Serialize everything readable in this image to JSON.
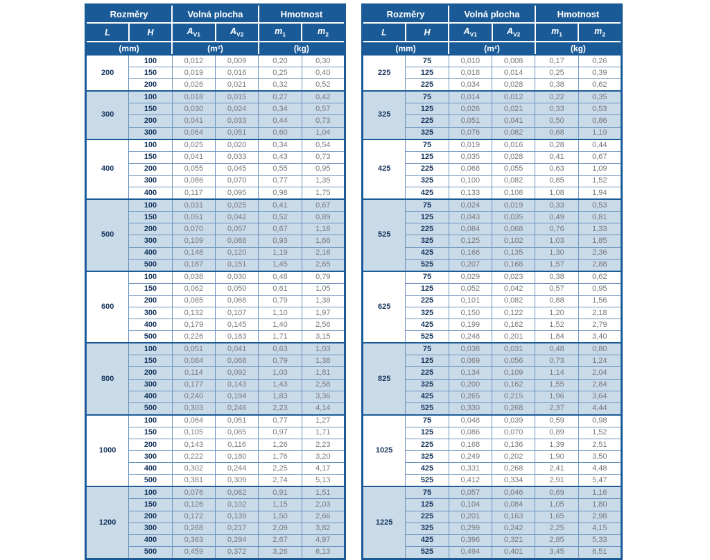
{
  "colors": {
    "header_bg": "#1a5a96",
    "band_light": "#c9dae9",
    "grid_border": "#6a92bd",
    "strong_border": "#1a5a96",
    "dimension_text": "#17365d",
    "value_text": "#77787b"
  },
  "header": {
    "groups": [
      "Rozměry",
      "Volná plocha",
      "Hmotnost"
    ],
    "columns": [
      {
        "text": "L",
        "sub": ""
      },
      {
        "text": "H",
        "sub": ""
      },
      {
        "text": "A",
        "sub": "V1"
      },
      {
        "text": "A",
        "sub": "V2"
      },
      {
        "text": "m",
        "sub": "1"
      },
      {
        "text": "m",
        "sub": "2"
      }
    ],
    "units": [
      "(mm)",
      "(m²)",
      "(kg)"
    ]
  },
  "tables": [
    {
      "name": "dimension-table-left",
      "groups": [
        {
          "l": "200",
          "rows": [
            [
              "100",
              "0,012",
              "0,009",
              "0,20",
              "0,30"
            ],
            [
              "150",
              "0,019",
              "0,016",
              "0,25",
              "0,40"
            ],
            [
              "200",
              "0,026",
              "0,021",
              "0,32",
              "0,52"
            ]
          ]
        },
        {
          "l": "300",
          "rows": [
            [
              "100",
              "0,018",
              "0,015",
              "0,27",
              "0,42"
            ],
            [
              "150",
              "0,030",
              "0,024",
              "0,34",
              "0,57"
            ],
            [
              "200",
              "0,041",
              "0,033",
              "0,44",
              "0,73"
            ],
            [
              "300",
              "0,064",
              "0,051",
              "0,60",
              "1,04"
            ]
          ]
        },
        {
          "l": "400",
          "rows": [
            [
              "100",
              "0,025",
              "0,020",
              "0,34",
              "0,54"
            ],
            [
              "150",
              "0,041",
              "0,033",
              "0,43",
              "0,73"
            ],
            [
              "200",
              "0,055",
              "0,045",
              "0,55",
              "0,95"
            ],
            [
              "300",
              "0,086",
              "0,070",
              "0,77",
              "1,35"
            ],
            [
              "400",
              "0,117",
              "0,095",
              "0,98",
              "1,75"
            ]
          ]
        },
        {
          "l": "500",
          "rows": [
            [
              "100",
              "0,031",
              "0,025",
              "0,41",
              "0,67"
            ],
            [
              "150",
              "0,051",
              "0,042",
              "0,52",
              "0,89"
            ],
            [
              "200",
              "0,070",
              "0,057",
              "0,67",
              "1,16"
            ],
            [
              "300",
              "0,109",
              "0,088",
              "0,93",
              "1,66"
            ],
            [
              "400",
              "0,148",
              "0,120",
              "1,19",
              "2,16"
            ],
            [
              "500",
              "0,187",
              "0,151",
              "1,45",
              "2,65"
            ]
          ]
        },
        {
          "l": "600",
          "rows": [
            [
              "100",
              "0,038",
              "0,030",
              "0,48",
              "0,79"
            ],
            [
              "150",
              "0,062",
              "0,050",
              "0,61",
              "1,05"
            ],
            [
              "200",
              "0,085",
              "0,068",
              "0,79",
              "1,38"
            ],
            [
              "300",
              "0,132",
              "0,107",
              "1,10",
              "1,97"
            ],
            [
              "400",
              "0,179",
              "0,145",
              "1,40",
              "2,56"
            ],
            [
              "500",
              "0,226",
              "0,183",
              "1,71",
              "3,15"
            ]
          ]
        },
        {
          "l": "800",
          "rows": [
            [
              "100",
              "0,051",
              "0,041",
              "0,63",
              "1,03"
            ],
            [
              "150",
              "0,084",
              "0,068",
              "0,79",
              "1,38"
            ],
            [
              "200",
              "0,114",
              "0,092",
              "1,03",
              "1,81"
            ],
            [
              "300",
              "0,177",
              "0,143",
              "1,43",
              "2,58"
            ],
            [
              "400",
              "0,240",
              "0,194",
              "1,83",
              "3,36"
            ],
            [
              "500",
              "0,303",
              "0,246",
              "2,23",
              "4,14"
            ]
          ]
        },
        {
          "l": "1000",
          "rows": [
            [
              "100",
              "0,064",
              "0,051",
              "0,77",
              "1,27"
            ],
            [
              "150",
              "0,105",
              "0,085",
              "0,97",
              "1,71"
            ],
            [
              "200",
              "0,143",
              "0,116",
              "1,26",
              "2,23"
            ],
            [
              "300",
              "0,222",
              "0,180",
              "1,76",
              "3,20"
            ],
            [
              "400",
              "0,302",
              "0,244",
              "2,25",
              "4,17"
            ],
            [
              "500",
              "0,381",
              "0,309",
              "2,74",
              "5,13"
            ]
          ]
        },
        {
          "l": "1200",
          "rows": [
            [
              "100",
              "0,076",
              "0,062",
              "0,91",
              "1,51"
            ],
            [
              "150",
              "0,126",
              "0,102",
              "1,15",
              "2,03"
            ],
            [
              "200",
              "0,172",
              "0,139",
              "1,50",
              "2,66"
            ],
            [
              "300",
              "0,268",
              "0,217",
              "2,09",
              "3,82"
            ],
            [
              "400",
              "0,363",
              "0,294",
              "2,67",
              "4,97"
            ],
            [
              "500",
              "0,459",
              "0,372",
              "3,26",
              "6,13"
            ]
          ]
        }
      ]
    },
    {
      "name": "dimension-table-right",
      "groups": [
        {
          "l": "225",
          "rows": [
            [
              "75",
              "0,010",
              "0,008",
              "0,17",
              "0,26"
            ],
            [
              "125",
              "0,018",
              "0,014",
              "0,25",
              "0,39"
            ],
            [
              "225",
              "0,034",
              "0,028",
              "0,38",
              "0,62"
            ]
          ]
        },
        {
          "l": "325",
          "rows": [
            [
              "75",
              "0,014",
              "0,012",
              "0,22",
              "0,35"
            ],
            [
              "125",
              "0,026",
              "0,021",
              "0,33",
              "0,53"
            ],
            [
              "225",
              "0,051",
              "0,041",
              "0,50",
              "0,86"
            ],
            [
              "325",
              "0,076",
              "0,062",
              "0,68",
              "1,19"
            ]
          ]
        },
        {
          "l": "425",
          "rows": [
            [
              "75",
              "0,019",
              "0,016",
              "0,28",
              "0,44"
            ],
            [
              "125",
              "0,035",
              "0,028",
              "0,41",
              "0,67"
            ],
            [
              "225",
              "0,068",
              "0,055",
              "0,63",
              "1,09"
            ],
            [
              "325",
              "0,100",
              "0,082",
              "0,85",
              "1,52"
            ],
            [
              "425",
              "0,133",
              "0,108",
              "1,08",
              "1,94"
            ]
          ]
        },
        {
          "l": "525",
          "rows": [
            [
              "75",
              "0,024",
              "0,019",
              "0,33",
              "0,53"
            ],
            [
              "125",
              "0,043",
              "0,035",
              "0,49",
              "0,81"
            ],
            [
              "225",
              "0,084",
              "0,068",
              "0,76",
              "1,33"
            ],
            [
              "325",
              "0,125",
              "0,102",
              "1,03",
              "1,85"
            ],
            [
              "425",
              "0,166",
              "0,135",
              "1,30",
              "2,36"
            ],
            [
              "525",
              "0,207",
              "0,168",
              "1,57",
              "2,88"
            ]
          ]
        },
        {
          "l": "625",
          "rows": [
            [
              "75",
              "0,029",
              "0,023",
              "0,38",
              "0,62"
            ],
            [
              "125",
              "0,052",
              "0,042",
              "0,57",
              "0,95"
            ],
            [
              "225",
              "0,101",
              "0,082",
              "0,88",
              "1,56"
            ],
            [
              "325",
              "0,150",
              "0,122",
              "1,20",
              "2,18"
            ],
            [
              "425",
              "0,199",
              "0,162",
              "1,52",
              "2,79"
            ],
            [
              "525",
              "0,248",
              "0,201",
              "1,84",
              "3,40"
            ]
          ]
        },
        {
          "l": "825",
          "rows": [
            [
              "75",
              "0,038",
              "0,031",
              "0,48",
              "0,80"
            ],
            [
              "125",
              "0,069",
              "0,056",
              "0,73",
              "1,24"
            ],
            [
              "225",
              "0,134",
              "0,109",
              "1,14",
              "2,04"
            ],
            [
              "325",
              "0,200",
              "0,162",
              "1,55",
              "2,84"
            ],
            [
              "425",
              "0,265",
              "0,215",
              "1,96",
              "3,64"
            ],
            [
              "525",
              "0,330",
              "0,268",
              "2,37",
              "4,44"
            ]
          ]
        },
        {
          "l": "1025",
          "rows": [
            [
              "75",
              "0,048",
              "0,039",
              "0,59",
              "0,98"
            ],
            [
              "125",
              "0,086",
              "0,070",
              "0,89",
              "1,52"
            ],
            [
              "225",
              "0,168",
              "0,136",
              "1,39",
              "2,51"
            ],
            [
              "325",
              "0,249",
              "0,202",
              "1,90",
              "3,50"
            ],
            [
              "425",
              "0,331",
              "0,268",
              "2,41",
              "4,48"
            ],
            [
              "525",
              "0,412",
              "0,334",
              "2,91",
              "5,47"
            ]
          ]
        },
        {
          "l": "1225",
          "rows": [
            [
              "75",
              "0,057",
              "0,046",
              "0,69",
              "1,16"
            ],
            [
              "125",
              "0,104",
              "0,084",
              "1,05",
              "1,80"
            ],
            [
              "225",
              "0,201",
              "0,163",
              "1,65",
              "2,98"
            ],
            [
              "325",
              "0,299",
              "0,242",
              "2,25",
              "4,15"
            ],
            [
              "425",
              "0,396",
              "0,321",
              "2,85",
              "5,33"
            ],
            [
              "525",
              "0,494",
              "0,401",
              "3,45",
              "6,51"
            ]
          ]
        }
      ]
    }
  ]
}
